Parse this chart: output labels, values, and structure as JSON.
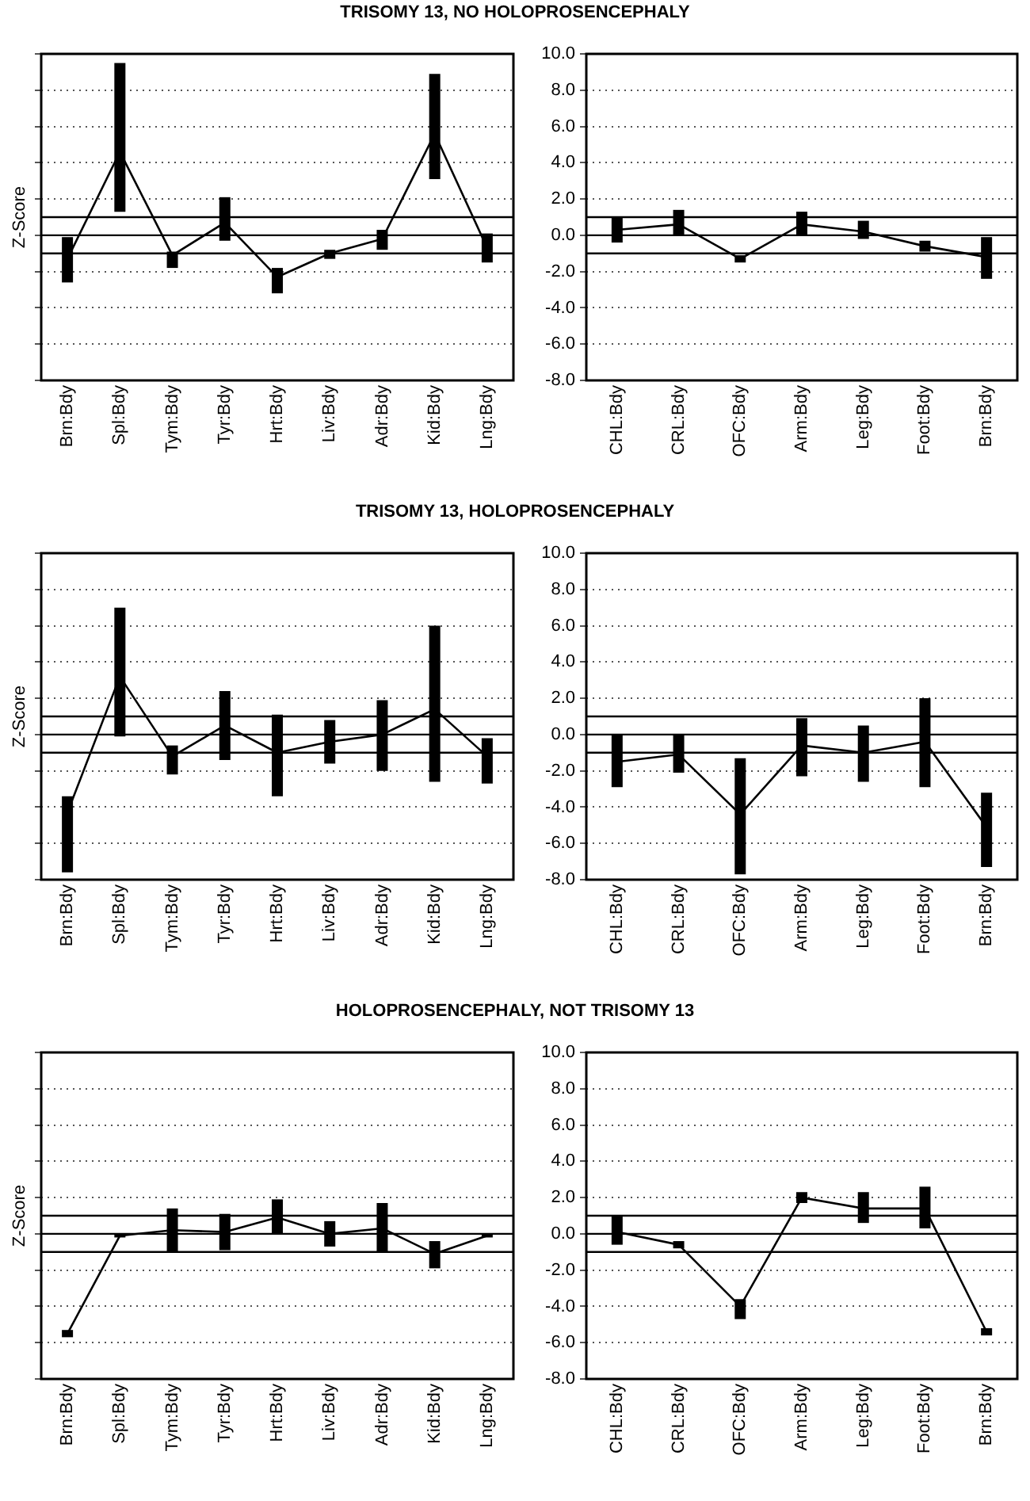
{
  "chart_data": [
    {
      "type": "line",
      "title": "TRISOMY 13, NO HOLOPROSENCEPHALY",
      "ylabel": "Z-Score",
      "categories": [
        "Brn:Bdy",
        "Spl:Bdy",
        "Tym:Bdy",
        "Tyr:Bdy",
        "Hrt:Bdy",
        "Liv:Bdy",
        "Adr:Bdy",
        "Kid:Bdy",
        "Lng:Bdy"
      ],
      "series": [
        {
          "color": "#000000",
          "values": [
            -1.3,
            4.6,
            -1.1,
            0.7,
            -2.3,
            -1.0,
            -0.2,
            5.6,
            -0.7
          ],
          "errors": [
            [
              -2.6,
              -0.1
            ],
            [
              1.3,
              9.5
            ],
            [
              -1.8,
              -0.9
            ],
            [
              -0.3,
              2.1
            ],
            [
              -3.2,
              -1.8
            ],
            [
              -1.3,
              -0.8
            ],
            [
              -0.8,
              0.3
            ],
            [
              3.1,
              8.9
            ],
            [
              -1.5,
              0.1
            ]
          ]
        }
      ],
      "ylim": [
        -8,
        10
      ],
      "yticks": [
        -8,
        -6,
        -4,
        -2,
        0,
        2,
        4,
        6,
        8,
        10
      ],
      "tick_labels": "x",
      "grid": "y",
      "marker": "none",
      "line_style": "solid",
      "ref_lines": [
        {
          "axis": "y",
          "value": 1
        },
        {
          "axis": "y",
          "value": 0
        },
        {
          "axis": "y",
          "value": -1
        }
      ]
    },
    {
      "type": "line",
      "categories": [
        "CHL:Bdy",
        "CRL:Bdy",
        "OFC:Bdy",
        "Arm:Bdy",
        "Leg:Bdy",
        "Foot:Bdy",
        "Brn:Bdy"
      ],
      "series": [
        {
          "color": "#000000",
          "values": [
            0.3,
            0.6,
            -1.3,
            0.6,
            0.2,
            -0.6,
            -1.2
          ],
          "errors": [
            [
              -0.4,
              1.0
            ],
            [
              0.0,
              1.4
            ],
            [
              -1.5,
              -1.1
            ],
            [
              0.0,
              1.3
            ],
            [
              -0.2,
              0.8
            ],
            [
              -0.9,
              -0.3
            ],
            [
              -2.4,
              -0.1
            ]
          ]
        }
      ],
      "ylim": [
        -8,
        10
      ],
      "yticks": [
        {
          "value": -8,
          "label": "-8.0"
        },
        {
          "value": -6,
          "label": "-6.0"
        },
        {
          "value": -4,
          "label": "-4.0"
        },
        {
          "value": -2,
          "label": "-2.0"
        },
        {
          "value": 0,
          "label": "0.0"
        },
        {
          "value": 2,
          "label": "2.0"
        },
        {
          "value": 4,
          "label": "4.0"
        },
        {
          "value": 6,
          "label": "6.0"
        },
        {
          "value": 8,
          "label": "8.0"
        },
        {
          "value": 10,
          "label": "10.0"
        }
      ],
      "grid": "y",
      "marker": "none",
      "line_style": "solid",
      "ref_lines": [
        {
          "axis": "y",
          "value": 1
        },
        {
          "axis": "y",
          "value": 0
        },
        {
          "axis": "y",
          "value": -1
        }
      ]
    },
    {
      "type": "line",
      "title": "TRISOMY 13, HOLOPROSENCEPHALY",
      "ylabel": "Z-Score",
      "categories": [
        "Brn:Bdy",
        "Spl:Bdy",
        "Tym:Bdy",
        "Tyr:Bdy",
        "Hrt:Bdy",
        "Liv:Bdy",
        "Adr:Bdy",
        "Kid:Bdy",
        "Lng:Bdy"
      ],
      "series": [
        {
          "color": "#000000",
          "values": [
            -4.3,
            3.2,
            -1.2,
            0.5,
            -1.0,
            -0.4,
            0.0,
            1.4,
            -1.2
          ],
          "errors": [
            [
              -7.6,
              -3.4
            ],
            [
              -0.1,
              7.0
            ],
            [
              -2.2,
              -0.6
            ],
            [
              -1.4,
              2.4
            ],
            [
              -3.4,
              1.1
            ],
            [
              -1.6,
              0.8
            ],
            [
              -2.0,
              1.9
            ],
            [
              -2.6,
              6.0
            ],
            [
              -2.7,
              -0.2
            ]
          ]
        }
      ],
      "ylim": [
        -8,
        10
      ],
      "yticks": [
        -8,
        -6,
        -4,
        -2,
        0,
        2,
        4,
        6,
        8,
        10
      ],
      "tick_labels": "x",
      "grid": "y",
      "marker": "none",
      "line_style": "solid",
      "ref_lines": [
        {
          "axis": "y",
          "value": 1
        },
        {
          "axis": "y",
          "value": 0
        },
        {
          "axis": "y",
          "value": -1
        }
      ]
    },
    {
      "type": "line",
      "categories": [
        "CHL:Bdy",
        "CRL:Bdy",
        "OFC:Bdy",
        "Arm:Bdy",
        "Leg:Bdy",
        "Foot:Bdy",
        "Brn:Bdy"
      ],
      "series": [
        {
          "color": "#000000",
          "values": [
            -1.5,
            -1.1,
            -4.4,
            -0.6,
            -1.0,
            -0.4,
            -5.1
          ],
          "errors": [
            [
              -2.9,
              0.0
            ],
            [
              -2.1,
              0.0
            ],
            [
              -7.7,
              -1.3
            ],
            [
              -2.3,
              0.9
            ],
            [
              -2.6,
              0.5
            ],
            [
              -2.9,
              2.0
            ],
            [
              -7.3,
              -3.2
            ]
          ]
        }
      ],
      "ylim": [
        -8,
        10
      ],
      "yticks": [
        {
          "value": -8,
          "label": "-8.0"
        },
        {
          "value": -6,
          "label": "-6.0"
        },
        {
          "value": -4,
          "label": "-4.0"
        },
        {
          "value": -2,
          "label": "-2.0"
        },
        {
          "value": 0,
          "label": "0.0"
        },
        {
          "value": 2,
          "label": "2.0"
        },
        {
          "value": 4,
          "label": "4.0"
        },
        {
          "value": 6,
          "label": "6.0"
        },
        {
          "value": 8,
          "label": "8.0"
        },
        {
          "value": 10,
          "label": "10.0"
        }
      ],
      "grid": "y",
      "marker": "none",
      "line_style": "solid",
      "ref_lines": [
        {
          "axis": "y",
          "value": 1
        },
        {
          "axis": "y",
          "value": 0
        },
        {
          "axis": "y",
          "value": -1
        }
      ]
    },
    {
      "type": "line",
      "title": "HOLOPROSENCEPHALY, NOT TRISOMY 13",
      "ylabel": "Z-Score",
      "categories": [
        "Brn:Bdy",
        "Spl:Bdy",
        "Tym:Bdy",
        "Tyr:Bdy",
        "Hrt:Bdy",
        "Liv:Bdy",
        "Adr:Bdy",
        "Kid:Bdy",
        "Lng:Bdy"
      ],
      "series": [
        {
          "color": "#000000",
          "values": [
            -5.5,
            -0.1,
            0.2,
            0.1,
            0.9,
            0.0,
            0.3,
            -1.1,
            -0.1
          ],
          "errors": [
            [
              -5.7,
              -5.3
            ],
            [
              -0.2,
              0.0
            ],
            [
              -1.0,
              1.4
            ],
            [
              -0.9,
              1.1
            ],
            [
              0.0,
              1.9
            ],
            [
              -0.7,
              0.7
            ],
            [
              -1.0,
              1.7
            ],
            [
              -1.9,
              -0.4
            ],
            [
              -0.2,
              0.0
            ]
          ]
        }
      ],
      "ylim": [
        -8,
        10
      ],
      "yticks": [
        -8,
        -6,
        -4,
        -2,
        0,
        2,
        4,
        6,
        8,
        10
      ],
      "tick_labels": "x",
      "grid": "y",
      "marker": "none",
      "line_style": "solid",
      "ref_lines": [
        {
          "axis": "y",
          "value": 1
        },
        {
          "axis": "y",
          "value": 0
        },
        {
          "axis": "y",
          "value": -1
        }
      ]
    },
    {
      "type": "line",
      "categories": [
        "CHL:Bdy",
        "CRL:Bdy",
        "OFC:Bdy",
        "Arm:Bdy",
        "Leg:Bdy",
        "Foot:Bdy",
        "Brn:Bdy"
      ],
      "series": [
        {
          "color": "#000000",
          "values": [
            0.1,
            -0.6,
            -4.0,
            2.0,
            1.4,
            1.4,
            -5.4
          ],
          "errors": [
            [
              -0.6,
              1.0
            ],
            [
              -0.8,
              -0.4
            ],
            [
              -4.7,
              -3.6
            ],
            [
              1.7,
              2.3
            ],
            [
              0.6,
              2.3
            ],
            [
              0.3,
              2.6
            ],
            [
              -5.6,
              -5.2
            ]
          ]
        }
      ],
      "ylim": [
        -8,
        10
      ],
      "yticks": [
        {
          "value": -8,
          "label": "-8.0"
        },
        {
          "value": -6,
          "label": "-6.0"
        },
        {
          "value": -4,
          "label": "-4.0"
        },
        {
          "value": -2,
          "label": "-2.0"
        },
        {
          "value": 0,
          "label": "0.0"
        },
        {
          "value": 2,
          "label": "2.0"
        },
        {
          "value": 4,
          "label": "4.0"
        },
        {
          "value": 6,
          "label": "6.0"
        },
        {
          "value": 8,
          "label": "8.0"
        },
        {
          "value": 10,
          "label": "10.0"
        }
      ],
      "grid": "y",
      "marker": "none",
      "line_style": "solid",
      "ref_lines": [
        {
          "axis": "y",
          "value": 1
        },
        {
          "axis": "y",
          "value": 0
        },
        {
          "axis": "y",
          "value": -1
        }
      ]
    }
  ]
}
